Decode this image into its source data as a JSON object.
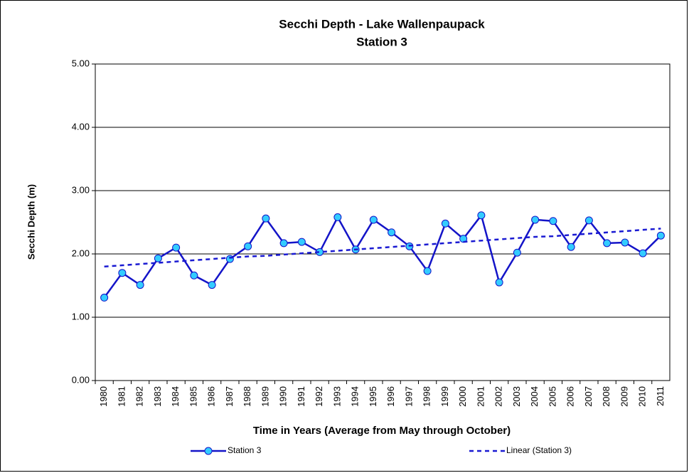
{
  "chart_data": {
    "type": "line",
    "title": "Secchi Depth - Lake Wallenpaupack",
    "subtitle": "Station 3",
    "x_label": "Time in Years (Average from May through October)",
    "y_label": "Secchi Depth (m)",
    "categories": [
      "1980",
      "1981",
      "1982",
      "1983",
      "1984",
      "1985",
      "1986",
      "1987",
      "1988",
      "1989",
      "1990",
      "1991",
      "1992",
      "1993",
      "1994",
      "1995",
      "1996",
      "1997",
      "1998",
      "1999",
      "2000",
      "2001",
      "2002",
      "2003",
      "2004",
      "2005",
      "2006",
      "2007",
      "2008",
      "2009",
      "2010",
      "2011"
    ],
    "series": [
      {
        "name": "Station 3",
        "color": "#1414c8",
        "marker_color": "#33ccff",
        "style": "solid",
        "marker": true,
        "values": [
          1.31,
          1.7,
          1.51,
          1.93,
          2.1,
          1.66,
          1.51,
          1.92,
          2.12,
          2.56,
          2.17,
          2.19,
          2.03,
          2.58,
          2.07,
          2.54,
          2.34,
          2.12,
          1.73,
          2.48,
          2.24,
          2.61,
          1.55,
          2.02,
          2.54,
          2.52,
          2.11,
          2.53,
          2.17,
          2.18,
          2.01,
          2.29
        ]
      },
      {
        "name": "Linear (Station 3)",
        "color": "#1a1ad2",
        "style": "dashed",
        "marker": false,
        "values": [
          1.8,
          1.82,
          1.84,
          1.86,
          1.88,
          1.9,
          1.92,
          1.94,
          1.96,
          1.97,
          1.99,
          2.01,
          2.03,
          2.05,
          2.07,
          2.09,
          2.11,
          2.13,
          2.15,
          2.17,
          2.19,
          2.21,
          2.23,
          2.25,
          2.27,
          2.28,
          2.3,
          2.32,
          2.34,
          2.36,
          2.38,
          2.4
        ]
      }
    ],
    "ylim": [
      0,
      5
    ],
    "yticks": [
      {
        "value": 0,
        "label": "0.00"
      },
      {
        "value": 1,
        "label": "1.00"
      },
      {
        "value": 2,
        "label": "2.00"
      },
      {
        "value": 3,
        "label": "3.00"
      },
      {
        "value": 4,
        "label": "4.00"
      },
      {
        "value": 5,
        "label": "5.00"
      }
    ],
    "grid": true,
    "legend": "bottom"
  }
}
